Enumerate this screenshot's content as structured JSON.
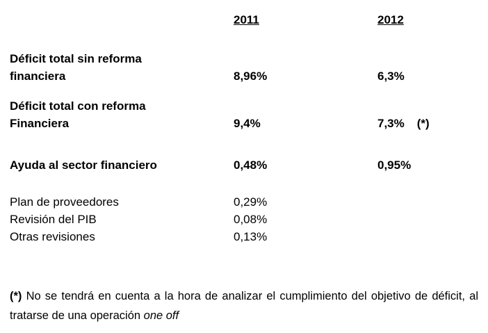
{
  "page": {
    "background_color": "#ffffff",
    "text_color": "#000000"
  },
  "table": {
    "year_headers": [
      "2011",
      "2012"
    ],
    "rows": [
      {
        "label": "Déficit total sin reforma\nfinanciera",
        "values": {
          "y2011": "8,96%",
          "y2012": "6,3%"
        },
        "note": ""
      },
      {
        "label": "Déficit total con reforma\nFinanciera",
        "values": {
          "y2011": "9,4%",
          "y2012": "7,3%"
        },
        "note": "(*)"
      },
      {
        "label": "Ayuda al sector financiero",
        "values": {
          "y2011": "0,48%",
          "y2012": "0,95%"
        },
        "note": ""
      },
      {
        "label": "Plan de proveedores",
        "values": {
          "y2011": "0,29%",
          "y2012": ""
        },
        "note": ""
      },
      {
        "label": "Revisión del PIB",
        "values": {
          "y2011": "0,08%",
          "y2012": ""
        },
        "note": ""
      },
      {
        "label": "Otras revisiones",
        "values": {
          "y2011": "0,13%",
          "y2012": ""
        },
        "note": ""
      }
    ]
  },
  "footnote": {
    "marker": "(*)",
    "text": "No se tendrá en cuenta a la hora de analizar el cumplimiento del objetivo de déficit, al tratarse de una operación",
    "italic": "one off"
  }
}
